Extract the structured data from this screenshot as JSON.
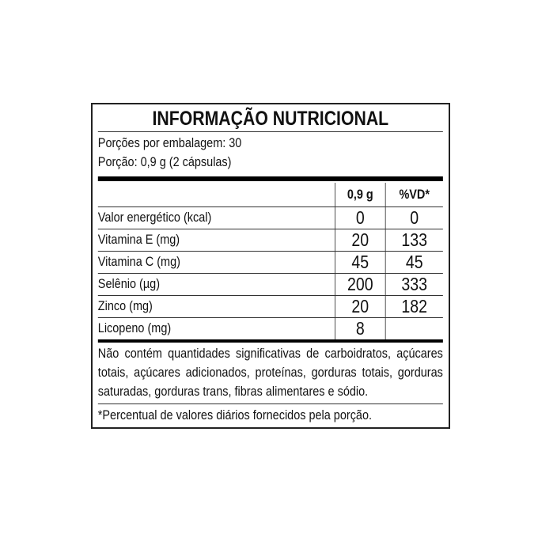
{
  "title": "INFORMAÇÃO NUTRICIONAL",
  "servings_per_package": "Porções por embalagem: 30",
  "serving_size": "Porção: 0,9 g (2 cápsulas)",
  "table": {
    "headers": [
      "",
      "0,9 g",
      "%VD*"
    ],
    "rows": [
      [
        "Valor energético (kcal)",
        "0",
        "0"
      ],
      [
        "Vitamina E (mg)",
        "20",
        "133"
      ],
      [
        "Vitamina C (mg)",
        "45",
        "45"
      ],
      [
        "Selênio (µg)",
        "200",
        "333"
      ],
      [
        "Zinco (mg)",
        "20",
        "182"
      ],
      [
        "Licopeno (mg)",
        "8",
        ""
      ]
    ]
  },
  "note": "Não contém quantidades significativas de carboidratos, açúcares totais, açúcares adicionados, proteínas, gorduras totais, gorduras saturadas, gorduras trans, fibras alimentares e sódio.",
  "footnote": "*Percentual de valores diários fornecidos pela porção."
}
